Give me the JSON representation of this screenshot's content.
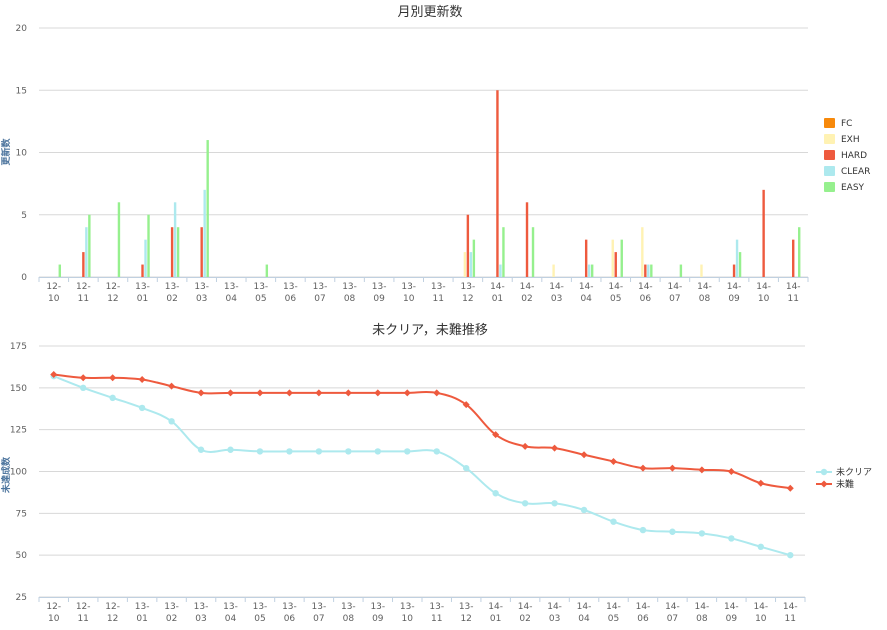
{
  "colors": {
    "FC": "#f7890b",
    "EXH": "#fff2b3",
    "HARD": "#ee5a3e",
    "CLEAR": "#ade9ee",
    "EASY": "#96f08e",
    "uncleared": "#ade9ee",
    "unhard": "#ee5a3e"
  },
  "chart_data": [
    {
      "type": "bar",
      "title": "月別更新数",
      "ylabel": "更新数",
      "ylim": [
        0,
        20
      ],
      "yticks": [
        0,
        5,
        10,
        15,
        20
      ],
      "categories": [
        "12-10",
        "12-11",
        "12-12",
        "13-01",
        "13-02",
        "13-03",
        "13-04",
        "13-05",
        "13-06",
        "13-07",
        "13-08",
        "13-09",
        "13-10",
        "13-11",
        "13-12",
        "14-01",
        "14-02",
        "14-03",
        "14-04",
        "14-05",
        "14-06",
        "14-07",
        "14-08",
        "14-09",
        "14-10",
        "14-11"
      ],
      "category_labels": [
        [
          "12-",
          "10"
        ],
        [
          "12-",
          "11"
        ],
        [
          "12-",
          "12"
        ],
        [
          "13-",
          "01"
        ],
        [
          "13-",
          "02"
        ],
        [
          "13-",
          "03"
        ],
        [
          "13-",
          "04"
        ],
        [
          "13-",
          "05"
        ],
        [
          "13-",
          "06"
        ],
        [
          "13-",
          "07"
        ],
        [
          "13-",
          "08"
        ],
        [
          "13-",
          "09"
        ],
        [
          "13-",
          "10"
        ],
        [
          "13-",
          "11"
        ],
        [
          "13-",
          "12"
        ],
        [
          "14-",
          "01"
        ],
        [
          "14-",
          "02"
        ],
        [
          "14-",
          "03"
        ],
        [
          "14-",
          "04"
        ],
        [
          "14-",
          "05"
        ],
        [
          "14-",
          "06"
        ],
        [
          "14-",
          "07"
        ],
        [
          "14-",
          "08"
        ],
        [
          "14-",
          "09"
        ],
        [
          "14-",
          "10"
        ],
        [
          "14-",
          "11"
        ]
      ],
      "legend_position": "right",
      "grid": true,
      "series": [
        {
          "name": "FC",
          "values": [
            0,
            0,
            0,
            0,
            0,
            0,
            0,
            0,
            0,
            0,
            0,
            0,
            0,
            0,
            0,
            0,
            0,
            0,
            0,
            0,
            0,
            0,
            0,
            0,
            0,
            0
          ]
        },
        {
          "name": "EXH",
          "values": [
            0,
            0,
            0,
            0,
            0,
            0,
            0,
            0,
            0,
            0,
            0,
            0,
            0,
            0,
            2,
            0,
            0,
            1,
            0,
            3,
            4,
            0,
            1,
            0,
            0,
            0
          ]
        },
        {
          "name": "HARD",
          "values": [
            0,
            2,
            0,
            1,
            4,
            4,
            0,
            0,
            0,
            0,
            0,
            0,
            0,
            0,
            5,
            15,
            6,
            0,
            3,
            2,
            1,
            0,
            0,
            1,
            7,
            3
          ]
        },
        {
          "name": "CLEAR",
          "values": [
            0,
            4,
            0,
            3,
            6,
            7,
            0,
            0,
            0,
            0,
            0,
            0,
            0,
            0,
            2,
            1,
            0,
            0,
            1,
            0,
            1,
            0,
            0,
            3,
            0,
            0
          ]
        },
        {
          "name": "EASY",
          "values": [
            1,
            5,
            6,
            5,
            4,
            11,
            0,
            1,
            0,
            0,
            0,
            0,
            0,
            0,
            3,
            4,
            4,
            0,
            1,
            3,
            1,
            1,
            0,
            2,
            0,
            4
          ]
        }
      ]
    },
    {
      "type": "line",
      "title": "未クリア，未難推移",
      "ylabel": "未達成数",
      "ylim": [
        25,
        175
      ],
      "yticks": [
        25,
        50,
        75,
        100,
        125,
        150,
        175
      ],
      "categories": [
        "12-10",
        "12-11",
        "12-12",
        "13-01",
        "13-02",
        "13-03",
        "13-04",
        "13-05",
        "13-06",
        "13-07",
        "13-08",
        "13-09",
        "13-10",
        "13-11",
        "13-12",
        "14-01",
        "14-02",
        "14-03",
        "14-04",
        "14-05",
        "14-06",
        "14-07",
        "14-08",
        "14-09",
        "14-10",
        "14-11"
      ],
      "category_labels": [
        [
          "12-",
          "10"
        ],
        [
          "12-",
          "11"
        ],
        [
          "12-",
          "12"
        ],
        [
          "13-",
          "01"
        ],
        [
          "13-",
          "02"
        ],
        [
          "13-",
          "03"
        ],
        [
          "13-",
          "04"
        ],
        [
          "13-",
          "05"
        ],
        [
          "13-",
          "06"
        ],
        [
          "13-",
          "07"
        ],
        [
          "13-",
          "08"
        ],
        [
          "13-",
          "09"
        ],
        [
          "13-",
          "10"
        ],
        [
          "13-",
          "11"
        ],
        [
          "13-",
          "12"
        ],
        [
          "14-",
          "01"
        ],
        [
          "14-",
          "02"
        ],
        [
          "14-",
          "03"
        ],
        [
          "14-",
          "04"
        ],
        [
          "14-",
          "05"
        ],
        [
          "14-",
          "06"
        ],
        [
          "14-",
          "07"
        ],
        [
          "14-",
          "08"
        ],
        [
          "14-",
          "09"
        ],
        [
          "14-",
          "10"
        ],
        [
          "14-",
          "11"
        ]
      ],
      "legend_position": "right",
      "grid": true,
      "series": [
        {
          "name": "未クリア",
          "marker": "circle",
          "values": [
            157,
            150,
            144,
            138,
            130,
            113,
            113,
            112,
            112,
            112,
            112,
            112,
            112,
            112,
            102,
            87,
            81,
            81,
            77,
            70,
            65,
            64,
            63,
            60,
            55,
            50
          ]
        },
        {
          "name": "未難",
          "marker": "diamond",
          "values": [
            158,
            156,
            156,
            155,
            151,
            147,
            147,
            147,
            147,
            147,
            147,
            147,
            147,
            147,
            140,
            122,
            115,
            114,
            110,
            106,
            102,
            102,
            101,
            100,
            93,
            90
          ]
        }
      ]
    }
  ]
}
